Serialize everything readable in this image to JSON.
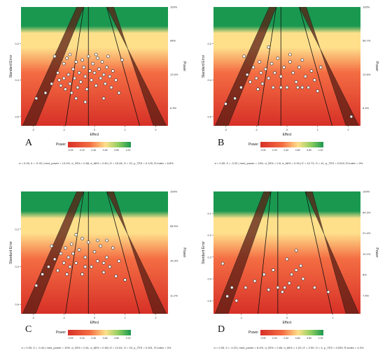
{
  "colors": {
    "bg_top_green": "#1a9850",
    "bg_yellow": "#fee08b",
    "bg_orange": "#f46d43",
    "bg_red": "#d73027",
    "funnel_band": "#5a1e14",
    "point_fill": "#ffffff",
    "point_stroke": "#222222"
  },
  "legend": {
    "title": "Power",
    "ticks": [
      "0.05",
      "0.20",
      "0.40",
      "0.60",
      "0.80",
      "1.00"
    ]
  },
  "chart_data": [
    {
      "type": "scatter",
      "panel_label": "A",
      "xlabel": "Effect",
      "ylabel": "Standard Error",
      "right_label": "Power",
      "xticks": [
        "-2",
        "-1",
        "0",
        "1",
        "2"
      ],
      "yticks": [
        "0.2",
        "0.4",
        "0.6"
      ],
      "right_ticks": [
        "100%",
        "98%",
        "12.6%",
        "6.3%"
      ],
      "xlim": [
        -2.4,
        2.4
      ],
      "ylim": [
        0.0,
        0.65
      ],
      "points": [
        [
          -1.9,
          0.5
        ],
        [
          -1.6,
          0.47
        ],
        [
          -1.4,
          0.42
        ],
        [
          -1.2,
          0.36
        ],
        [
          -1.15,
          0.4
        ],
        [
          -1.1,
          0.43
        ],
        [
          -1.0,
          0.31
        ],
        [
          -1.0,
          0.39
        ],
        [
          -0.95,
          0.45
        ],
        [
          -0.9,
          0.28
        ],
        [
          -0.85,
          0.37
        ],
        [
          -0.8,
          0.42
        ],
        [
          -0.75,
          0.47
        ],
        [
          -0.7,
          0.34
        ],
        [
          -0.65,
          0.39
        ],
        [
          -0.6,
          0.3
        ],
        [
          -0.55,
          0.44
        ],
        [
          -0.5,
          0.36
        ],
        [
          -0.45,
          0.41
        ],
        [
          -0.4,
          0.29
        ],
        [
          -0.35,
          0.33
        ],
        [
          -0.3,
          0.38
        ],
        [
          -0.25,
          0.45
        ],
        [
          -0.2,
          0.27
        ],
        [
          -0.15,
          0.35
        ],
        [
          -0.1,
          0.4
        ],
        [
          -0.05,
          0.31
        ],
        [
          0.0,
          0.36
        ],
        [
          0.05,
          0.43
        ],
        [
          0.1,
          0.28
        ],
        [
          0.15,
          0.34
        ],
        [
          0.2,
          0.39
        ],
        [
          0.25,
          0.3
        ],
        [
          0.3,
          0.37
        ],
        [
          0.35,
          0.42
        ],
        [
          0.4,
          0.33
        ],
        [
          0.45,
          0.27
        ],
        [
          0.5,
          0.38
        ],
        [
          0.55,
          0.44
        ],
        [
          0.6,
          0.35
        ],
        [
          0.7,
          0.4
        ],
        [
          0.8,
          0.47
        ],
        [
          0.9,
          0.29
        ],
        [
          -1.3,
          0.27
        ],
        [
          -0.8,
          0.26
        ],
        [
          0.05,
          0.26
        ],
        [
          -0.6,
          0.5
        ],
        [
          -0.3,
          0.52
        ],
        [
          0.3,
          0.5
        ]
      ],
      "stats": "α = 0.05, δ = -0.32 | med_power = 13.2%, d_33% = 0.58, d_66% = 0.81 | E = 16.28, O = 22, p_TES = 0.125, R-Index = 6.8%"
    },
    {
      "type": "scatter",
      "panel_label": "B",
      "xlabel": "Effect",
      "ylabel": "Standard Error",
      "right_label": "Power",
      "xticks": [
        "-2",
        "-1",
        "0",
        "1",
        "2"
      ],
      "yticks": [
        "0.2",
        "0.4",
        "0.6"
      ],
      "right_ticks": [
        "100%",
        "56.7%",
        "12.6%",
        "6.4%"
      ],
      "xlim": [
        -2.4,
        2.4
      ],
      "ylim": [
        0.0,
        0.65
      ],
      "points": [
        [
          -2.0,
          0.53
        ],
        [
          -1.7,
          0.5
        ],
        [
          -1.5,
          0.44
        ],
        [
          -1.3,
          0.37
        ],
        [
          -1.2,
          0.41
        ],
        [
          -1.1,
          0.33
        ],
        [
          -1.0,
          0.39
        ],
        [
          -0.95,
          0.45
        ],
        [
          -0.9,
          0.3
        ],
        [
          -0.85,
          0.36
        ],
        [
          -0.8,
          0.42
        ],
        [
          -0.7,
          0.34
        ],
        [
          -0.6,
          0.39
        ],
        [
          -0.5,
          0.31
        ],
        [
          -0.45,
          0.44
        ],
        [
          -0.4,
          0.36
        ],
        [
          -0.3,
          0.28
        ],
        [
          -0.2,
          0.38
        ],
        [
          -0.1,
          0.33
        ],
        [
          0.0,
          0.44
        ],
        [
          0.1,
          0.3
        ],
        [
          0.2,
          0.36
        ],
        [
          0.3,
          0.41
        ],
        [
          0.4,
          0.33
        ],
        [
          0.5,
          0.29
        ],
        [
          0.6,
          0.38
        ],
        [
          0.7,
          0.44
        ],
        [
          0.8,
          0.35
        ],
        [
          0.9,
          0.4
        ],
        [
          1.0,
          0.46
        ],
        [
          1.1,
          0.33
        ],
        [
          -0.2,
          0.44
        ],
        [
          0.5,
          0.44
        ],
        [
          0.35,
          0.44
        ],
        [
          -0.6,
          0.22
        ],
        [
          0.1,
          0.26
        ],
        [
          2.1,
          0.6
        ],
        [
          -1.4,
          0.27
        ]
      ],
      "stats": "α = 0.05, δ = -0.32 | med_power = 13%, d_33% = 0.6, d_66% = 0.93 | E = 10.73, O = 41, p_TES = 0.003, R-Index = 0%"
    },
    {
      "type": "scatter",
      "panel_label": "C",
      "xlabel": "Effect",
      "ylabel": "Standard Error",
      "right_label": "Power",
      "xticks": [
        "-2",
        "-1",
        "0",
        "1",
        "2"
      ],
      "yticks": [
        "0.2",
        "0.4",
        "0.6"
      ],
      "right_ticks": [
        "100%",
        "58.5%",
        "15.3%",
        "11.2%"
      ],
      "xlim": [
        -2.4,
        2.4
      ],
      "ylim": [
        0.0,
        0.65
      ],
      "points": [
        [
          -1.9,
          0.5
        ],
        [
          -1.7,
          0.44
        ],
        [
          -1.5,
          0.4
        ],
        [
          -1.3,
          0.36
        ],
        [
          -1.2,
          0.42
        ],
        [
          -1.1,
          0.33
        ],
        [
          -1.0,
          0.38
        ],
        [
          -0.95,
          0.3
        ],
        [
          -0.9,
          0.44
        ],
        [
          -0.85,
          0.35
        ],
        [
          -0.8,
          0.4
        ],
        [
          -0.75,
          0.28
        ],
        [
          -0.7,
          0.33
        ],
        [
          -0.6,
          0.38
        ],
        [
          -0.5,
          0.31
        ],
        [
          -0.4,
          0.44
        ],
        [
          -0.3,
          0.35
        ],
        [
          -0.2,
          0.27
        ],
        [
          -0.1,
          0.4
        ],
        [
          0.0,
          0.32
        ],
        [
          0.1,
          0.37
        ],
        [
          0.2,
          0.29
        ],
        [
          0.3,
          0.43
        ],
        [
          0.4,
          0.35
        ],
        [
          0.5,
          0.4
        ],
        [
          0.6,
          0.3
        ],
        [
          0.7,
          0.45
        ],
        [
          0.8,
          0.37
        ],
        [
          1.0,
          0.47
        ],
        [
          -0.6,
          0.23
        ],
        [
          -0.4,
          0.25
        ],
        [
          0.1,
          0.26
        ],
        [
          0.4,
          0.26
        ],
        [
          -1.4,
          0.29
        ],
        [
          -0.3,
          0.4
        ],
        [
          0.3,
          0.38
        ]
      ],
      "stats": "α = 0.05, δ = -0.44 | med_power = 19%, d_33% = 0.61, d_66% = 0.96 | E = 12.64, O = 23, p_TES = 0.001, R-Index = 0%"
    },
    {
      "type": "scatter",
      "panel_label": "D",
      "xlabel": "Effect",
      "ylabel": "Standard Error",
      "right_label": "Power",
      "xticks": [
        "-1",
        "0",
        "1"
      ],
      "yticks": [
        "0.1",
        "0.2",
        "0.3",
        "0.4",
        "0.5"
      ],
      "right_ticks": [
        "100%",
        "64.3%",
        "21.4%",
        "12.1%",
        "8%",
        "7.5%"
      ],
      "xlim": [
        -1.6,
        1.6
      ],
      "ylim": [
        0.0,
        0.56
      ],
      "points": [
        [
          -1.4,
          0.33
        ],
        [
          -1.3,
          0.48
        ],
        [
          -1.2,
          0.44
        ],
        [
          -1.1,
          0.5
        ],
        [
          -0.9,
          0.44
        ],
        [
          -0.7,
          0.41
        ],
        [
          -0.5,
          0.38
        ],
        [
          -0.4,
          0.45
        ],
        [
          -0.3,
          0.36
        ],
        [
          -0.2,
          0.44
        ],
        [
          -0.1,
          0.46
        ],
        [
          0.0,
          0.31
        ],
        [
          0.1,
          0.38
        ],
        [
          0.2,
          0.36
        ],
        [
          0.25,
          0.44
        ],
        [
          0.3,
          0.34
        ],
        [
          0.35,
          0.4
        ],
        [
          0.2,
          0.27
        ],
        [
          0.6,
          0.44
        ],
        [
          0.9,
          0.46
        ],
        [
          0.05,
          0.42
        ],
        [
          -0.05,
          0.44
        ]
      ],
      "stats": "α = 0.05, δ = -0.23 | med_power = 8.4%, d_33% = 0.65, d_66% = 1.02 | E = 2.99, O = 4, p_TES = 0.539, R-Index = 4.4%"
    }
  ]
}
